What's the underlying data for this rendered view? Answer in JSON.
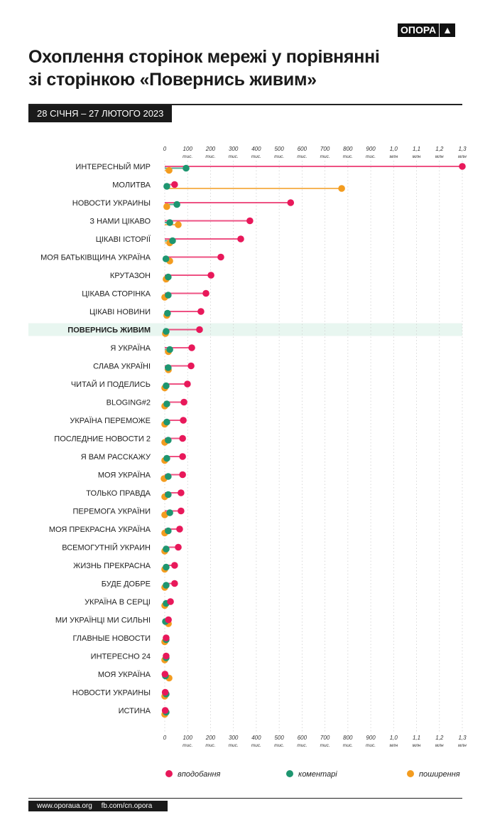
{
  "header": {
    "logo_text": "ОПОРА",
    "logo_icon": "triangle-up-icon",
    "title_line1": "Охоплення сторінок мережі у порівнянні",
    "title_line2": "зі сторінкою «Повернись живим»",
    "date_range": "28 СІЧНЯ – 27 ЛЮТОГО 2023"
  },
  "footer": {
    "site": "www.oporaua.org",
    "fb": "fb.com/cn.opora"
  },
  "colors": {
    "likes": "#e8185a",
    "comments": "#1e9670",
    "shares": "#f39c1f",
    "highlight": "#e8f6f0"
  },
  "chart_data": {
    "type": "lollipop",
    "orientation": "horizontal",
    "xlim": [
      0,
      1300000
    ],
    "ticks": [
      {
        "value": 0,
        "label": "0",
        "unit": ""
      },
      {
        "value": 100000,
        "label": "100",
        "unit": "тис."
      },
      {
        "value": 200000,
        "label": "200",
        "unit": "тис."
      },
      {
        "value": 300000,
        "label": "300",
        "unit": "тис."
      },
      {
        "value": 400000,
        "label": "400",
        "unit": "тис."
      },
      {
        "value": 500000,
        "label": "500",
        "unit": "тис."
      },
      {
        "value": 600000,
        "label": "600",
        "unit": "тис."
      },
      {
        "value": 700000,
        "label": "700",
        "unit": "тис."
      },
      {
        "value": 800000,
        "label": "800",
        "unit": "тис."
      },
      {
        "value": 900000,
        "label": "900",
        "unit": "тис."
      },
      {
        "value": 1000000,
        "label": "1,0",
        "unit": "млн"
      },
      {
        "value": 1100000,
        "label": "1,1",
        "unit": "млн"
      },
      {
        "value": 1200000,
        "label": "1,2",
        "unit": "млн"
      },
      {
        "value": 1300000,
        "label": "1,3",
        "unit": "млн"
      }
    ],
    "highlight": "ПОВЕРНИСЬ ЖИВИМ",
    "categories": [
      "ИНТЕРЕСНЫЙ МИР",
      "МОЛИТВА",
      "НОВОСТИ УКРАИНЫ",
      "З НАМИ ЦІКАВО",
      "ЦІКАВІ ІСТОРІЇ",
      "МОЯ БАТЬКІВЩИНА УКРАЇНА",
      "КРУТАЗОН",
      "ЦІКАВА СТОРІНКА",
      "ЦІКАВІ НОВИНИ",
      "ПОВЕРНИСЬ ЖИВИМ",
      "Я УКРАЇНА",
      "СЛАВА УКРАЇНІ",
      "ЧИТАЙ И ПОДЕЛИСЬ",
      "BLOGING#2",
      "УКРАЇНА ПЕРЕМОЖЕ",
      "ПОСЛЕДНИЕ НОВОСТИ 2",
      "Я ВАМ РАССКАЖУ",
      "МОЯ УКРАЇНА",
      "ТОЛЬКО ПРАВДА",
      "ПЕРЕМОГА УКРАЇНИ",
      "МОЯ ПРЕКРАСНА УКРАЇНА",
      "ВСЕМОГУТНІЙ УКРАИН",
      "ЖИЗНЬ ПРЕКРАСНА",
      "БУДЕ ДОБРЕ",
      "УКРАЇНА В СЕРЦІ",
      "МИ УКРАЇНЦІ МИ СИЛЬНІ",
      "ГЛАВНЫЕ НОВОСТИ",
      "ИНТЕРЕСНО 24",
      "МОЯ УКРАЇНА",
      "НОВОСТИ УКРАИНЫ",
      "ИСТИНА"
    ],
    "series": [
      {
        "name": "вподобання",
        "key": "likes",
        "values": [
          1300000,
          43000,
          550000,
          372000,
          332000,
          245000,
          202000,
          180000,
          158000,
          152000,
          118000,
          115000,
          99000,
          84000,
          81000,
          78000,
          78000,
          78000,
          71000,
          71000,
          65000,
          59000,
          43000,
          43000,
          25000,
          16000,
          6000,
          6000,
          1000,
          2000,
          2000
        ]
      },
      {
        "name": "коментарі",
        "key": "comments",
        "values": [
          90000,
          6000,
          50000,
          19000,
          31000,
          2000,
          12000,
          12000,
          9000,
          3000,
          19000,
          12000,
          3000,
          6000,
          6000,
          12000,
          6000,
          12000,
          12000,
          19000,
          12000,
          3000,
          3000,
          3000,
          3000,
          0,
          3000,
          3000,
          0,
          3000,
          3000
        ]
      },
      {
        "name": "поширення",
        "key": "shares",
        "values": [
          22000,
          776000,
          12000,
          62000,
          25000,
          25000,
          9000,
          3000,
          12000,
          6000,
          19000,
          19000,
          3000,
          3000,
          3000,
          3000,
          3000,
          0,
          3000,
          3000,
          3000,
          3000,
          3000,
          3000,
          3000,
          19000,
          3000,
          3000,
          22000,
          3000,
          3000
        ]
      }
    ],
    "legend_position": "bottom"
  }
}
